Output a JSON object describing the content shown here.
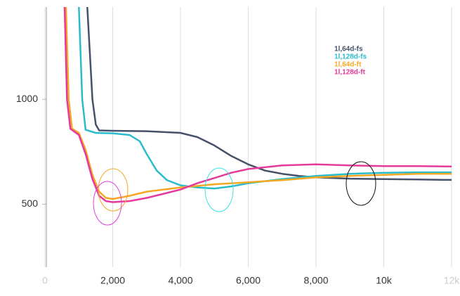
{
  "chart_data": {
    "type": "line",
    "xlim": [
      0,
      12000
    ],
    "ylim": [
      200,
      1440
    ],
    "xticks": [
      {
        "value": 0,
        "label": "0"
      },
      {
        "value": 2000,
        "label": "2,000"
      },
      {
        "value": 4000,
        "label": "4,000"
      },
      {
        "value": 6000,
        "label": "6,000"
      },
      {
        "value": 8000,
        "label": "8,000"
      },
      {
        "value": 10000,
        "label": "10k"
      },
      {
        "value": 12000,
        "label": "12k"
      }
    ],
    "yticks": [
      500,
      1000
    ],
    "grid": true,
    "series": [
      {
        "name": "1l,64d-fs",
        "color": "#45526a",
        "x": [
          1250,
          1400,
          1500,
          1600,
          2000,
          3000,
          4000,
          4500,
          5000,
          5500,
          6000,
          6500,
          7000,
          7500,
          8000,
          9000,
          10000,
          11000,
          12000
        ],
        "values": [
          1440,
          1000,
          880,
          852,
          850,
          848,
          840,
          820,
          780,
          730,
          690,
          660,
          645,
          635,
          628,
          622,
          620,
          618,
          616
        ]
      },
      {
        "name": "1l,128d-fs",
        "color": "#2bbccb",
        "x": [
          1000,
          1100,
          1200,
          1500,
          2000,
          2500,
          2800,
          3000,
          3300,
          3600,
          4000,
          4500,
          5000,
          5500,
          6000,
          7000,
          8000,
          9000,
          10000,
          11000,
          12000
        ],
        "values": [
          1440,
          1000,
          855,
          840,
          838,
          830,
          800,
          740,
          660,
          615,
          590,
          580,
          575,
          585,
          600,
          620,
          635,
          645,
          650,
          652,
          652
        ]
      },
      {
        "name": "1l,64d-ft",
        "color": "#f7a823",
        "x": [
          620,
          700,
          800,
          1000,
          1200,
          1400,
          1600,
          1800,
          2000,
          2500,
          3000,
          4000,
          5000,
          6000,
          7000,
          8000,
          9000,
          10000,
          11000,
          12000
        ],
        "values": [
          1440,
          1000,
          860,
          840,
          760,
          640,
          560,
          530,
          525,
          540,
          560,
          580,
          595,
          605,
          615,
          628,
          635,
          640,
          645,
          645
        ]
      },
      {
        "name": "1l,128d-ft",
        "color": "#e53a9c",
        "x": [
          580,
          650,
          750,
          1000,
          1200,
          1400,
          1600,
          1800,
          2000,
          2500,
          3000,
          3500,
          4000,
          4500,
          5000,
          5500,
          6000,
          7000,
          8000,
          9000,
          10000,
          11000,
          12000
        ],
        "values": [
          1440,
          1000,
          860,
          830,
          740,
          620,
          540,
          515,
          510,
          515,
          530,
          550,
          570,
          600,
          625,
          650,
          668,
          685,
          690,
          685,
          682,
          682,
          680
        ]
      }
    ]
  }
}
